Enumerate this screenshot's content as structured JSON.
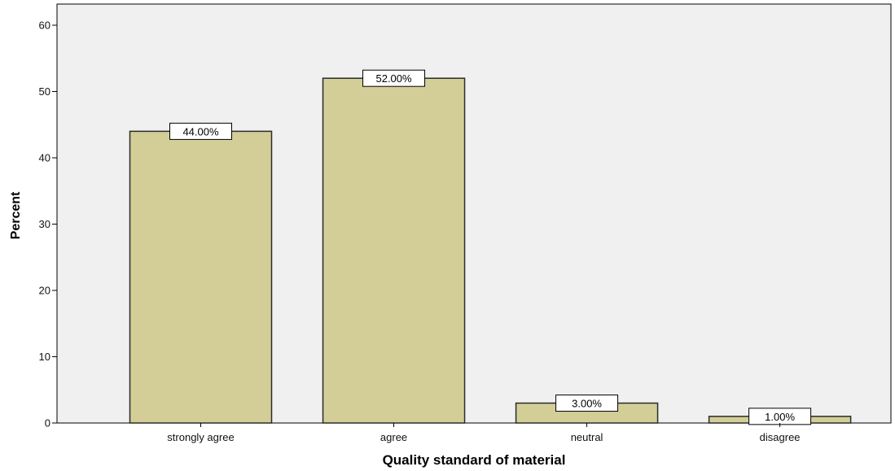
{
  "chart_data": {
    "type": "bar",
    "categories": [
      "strongly agree",
      "agree",
      "neutral",
      "disagree"
    ],
    "values": [
      44,
      52,
      3,
      1
    ],
    "data_labels": [
      "44.00%",
      "52.00%",
      "3.00%",
      "1.00%"
    ],
    "title": "",
    "xlabel": "Quality standard of material",
    "ylabel": "Percent",
    "ylim": [
      0,
      63
    ],
    "yticks": [
      0,
      10,
      20,
      30,
      40,
      50,
      60
    ],
    "grid": false,
    "legend": "none",
    "colors": {
      "plot_background": "#f0f0f0",
      "bar_fill": "#d3ce97",
      "bar_stroke": "#2b2b2b",
      "label_box": "#ffffff"
    }
  }
}
